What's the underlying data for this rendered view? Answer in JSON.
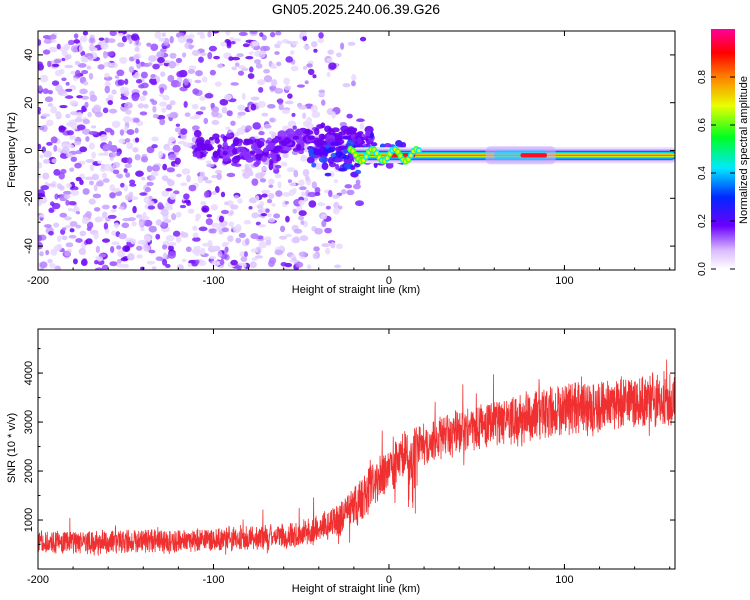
{
  "title": "GN05.2025.240.06.39.G26",
  "chart_data": [
    {
      "type": "heatmap",
      "name": "spectrogram",
      "xlabel": "Height of straight line (km)",
      "ylabel": "Frequency (Hz)",
      "xlim": [
        -200,
        163
      ],
      "ylim": [
        -50,
        50
      ],
      "xticks": [
        -200,
        -100,
        0,
        100
      ],
      "yticks": [
        -40,
        -20,
        0,
        20,
        40
      ],
      "colorbar": {
        "label": "Normalized spectral amplitude",
        "range": [
          0,
          1
        ],
        "ticks": [
          "0.0",
          "0.2",
          "0.4",
          "0.6",
          "0.8"
        ]
      },
      "features": {
        "noise_region_x": [
          -200,
          -20
        ],
        "carrier_line_freq_hz": -2,
        "carrier_start_x": -20,
        "carrier_wobble_x": [
          -45,
          10
        ],
        "high_amplitude_segments_x": [
          [
            75,
            90
          ],
          [
            0,
            15
          ]
        ]
      }
    },
    {
      "type": "line",
      "name": "snr",
      "xlabel": "Height of straight line (km)",
      "ylabel": "SNR (10 * v/v)",
      "xlim": [
        -200,
        163
      ],
      "ylim": [
        0,
        4900
      ],
      "xticks": [
        -200,
        -100,
        0,
        100
      ],
      "yticks": [
        1000,
        2000,
        3000,
        4000
      ],
      "color": "#f03030",
      "trend": {
        "x": [
          -200,
          -150,
          -100,
          -70,
          -50,
          -30,
          -20,
          -10,
          0,
          8,
          15,
          30,
          60,
          100,
          130,
          163
        ],
        "mean": [
          550,
          560,
          600,
          650,
          720,
          950,
          1250,
          1700,
          2000,
          2300,
          2500,
          2700,
          3000,
          3250,
          3400,
          3450
        ],
        "spread": [
          400,
          400,
          400,
          420,
          450,
          550,
          700,
          800,
          800,
          750,
          700,
          700,
          800,
          900,
          900,
          900
        ]
      }
    }
  ]
}
